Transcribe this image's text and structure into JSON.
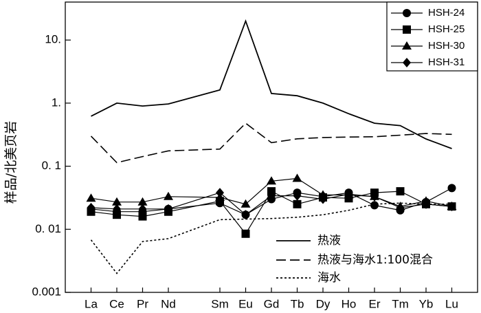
{
  "chart_data": {
    "type": "line",
    "yscale": "log",
    "ylim": [
      0.001,
      40
    ],
    "ylabel": "样品/北美页岩",
    "ytick_labels": [
      "0.001",
      "0. 01",
      "0. 1",
      "1.",
      "10."
    ],
    "ytick_values": [
      0.001,
      0.01,
      0.1,
      1,
      10
    ],
    "categories": [
      "La",
      "Ce",
      "Pr",
      "Nd",
      "Sm",
      "Eu",
      "Gd",
      "Tb",
      "Dy",
      "Ho",
      "Er",
      "Tm",
      "Yb",
      "Lu"
    ],
    "category_positions": [
      1,
      2,
      3,
      4,
      6,
      7,
      8,
      9,
      10,
      11,
      12,
      13,
      14,
      15
    ],
    "series": [
      {
        "name": "HSH-24",
        "marker": "circle",
        "values": [
          0.021,
          0.019,
          0.019,
          0.021,
          0.026,
          0.017,
          0.03,
          0.038,
          0.033,
          0.038,
          0.024,
          0.02,
          0.027,
          0.045
        ]
      },
      {
        "name": "HSH-25",
        "marker": "square",
        "values": [
          0.019,
          0.017,
          0.016,
          0.019,
          0.028,
          0.0085,
          0.04,
          0.025,
          0.032,
          0.031,
          0.038,
          0.04,
          0.025,
          0.023
        ]
      },
      {
        "name": "HSH-30",
        "marker": "triangle",
        "values": [
          0.031,
          0.027,
          0.027,
          0.033,
          0.032,
          0.025,
          0.058,
          0.064,
          0.035,
          0.035,
          0.033,
          0.023,
          0.028,
          0.023
        ]
      },
      {
        "name": "HSH-31",
        "marker": "diamond",
        "values": [
          0.022,
          0.021,
          0.021,
          0.021,
          0.038,
          0.017,
          0.034,
          0.034,
          0.03,
          0.036,
          0.033,
          0.022,
          0.025,
          0.023
        ]
      }
    ],
    "reference_lines": [
      {
        "name": "热液",
        "style": "solid",
        "values": [
          0.62,
          1.0,
          0.9,
          0.97,
          1.62,
          20.0,
          1.42,
          1.31,
          1.0,
          0.68,
          0.48,
          0.44,
          0.27,
          0.19
        ]
      },
      {
        "name": "热液与海水1:100混合",
        "style": "dashed",
        "values": [
          0.3,
          0.114,
          0.142,
          0.175,
          0.187,
          0.48,
          0.236,
          0.272,
          0.285,
          0.29,
          0.293,
          0.31,
          0.33,
          0.32
        ]
      },
      {
        "name": "海水",
        "style": "dotted",
        "values": [
          0.0068,
          0.002,
          0.0064,
          0.0071,
          0.0142,
          0.0145,
          0.0148,
          0.0155,
          0.017,
          0.02,
          0.025,
          0.026,
          0.025,
          0.025
        ]
      }
    ],
    "legend_position": "top-right",
    "legend2_position": "lower-right",
    "grid": false
  }
}
